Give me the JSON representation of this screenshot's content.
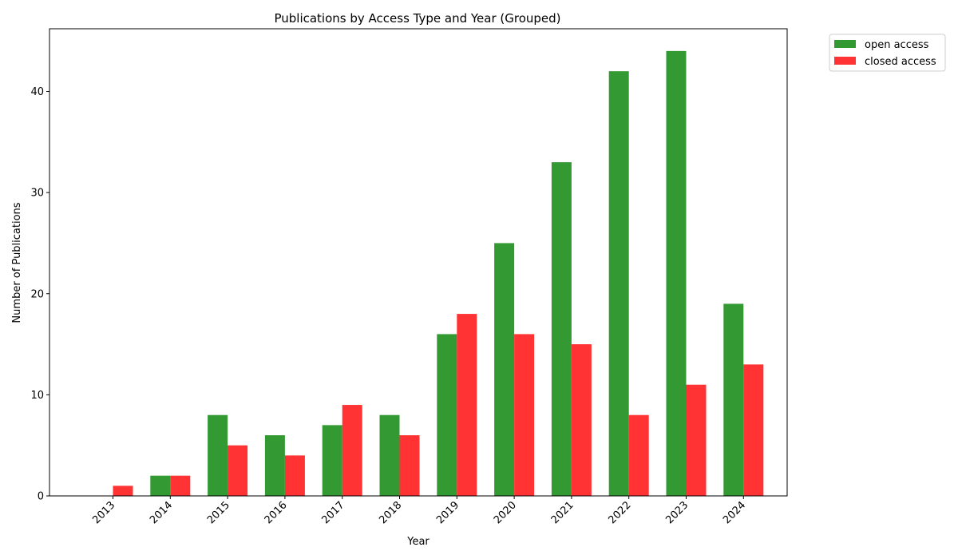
{
  "chart_data": {
    "type": "bar",
    "title": "Publications by Access Type and Year (Grouped)",
    "xlabel": "Year",
    "ylabel": "Number of Publications",
    "categories": [
      "2013",
      "2014",
      "2015",
      "2016",
      "2017",
      "2018",
      "2019",
      "2020",
      "2021",
      "2022",
      "2023",
      "2024"
    ],
    "series": [
      {
        "name": "open access",
        "color": "#339933",
        "values": [
          0,
          2,
          8,
          6,
          7,
          8,
          16,
          25,
          33,
          42,
          44,
          19
        ]
      },
      {
        "name": "closed access",
        "color": "#ff3333",
        "values": [
          1,
          2,
          5,
          4,
          9,
          6,
          18,
          16,
          15,
          8,
          11,
          13
        ]
      }
    ],
    "ylim": [
      0,
      46.2
    ],
    "yticks": [
      0,
      10,
      20,
      30,
      40
    ],
    "grid": false,
    "legend_position": "outside-top-right"
  }
}
